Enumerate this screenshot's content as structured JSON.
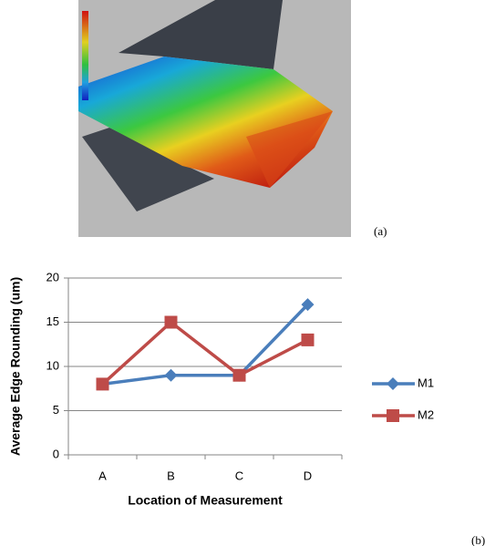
{
  "panel_labels": [
    "(a)",
    "(b)"
  ],
  "chart_data": {
    "type": "line",
    "x_label": "Location of Measurement",
    "y_label": "Average Edge Rounding (um)",
    "categories": [
      "A",
      "B",
      "C",
      "D"
    ],
    "series": [
      {
        "name": "M1",
        "color": "#4a7ebb",
        "marker": "diamond",
        "values": [
          8,
          9,
          9,
          17
        ]
      },
      {
        "name": "M2",
        "color": "#be4b48",
        "marker": "square",
        "values": [
          8,
          15,
          9,
          13
        ]
      }
    ],
    "ylim": [
      0,
      20
    ],
    "yticks": [
      0,
      5,
      10,
      15,
      20
    ],
    "grid": true,
    "legend": "right"
  }
}
